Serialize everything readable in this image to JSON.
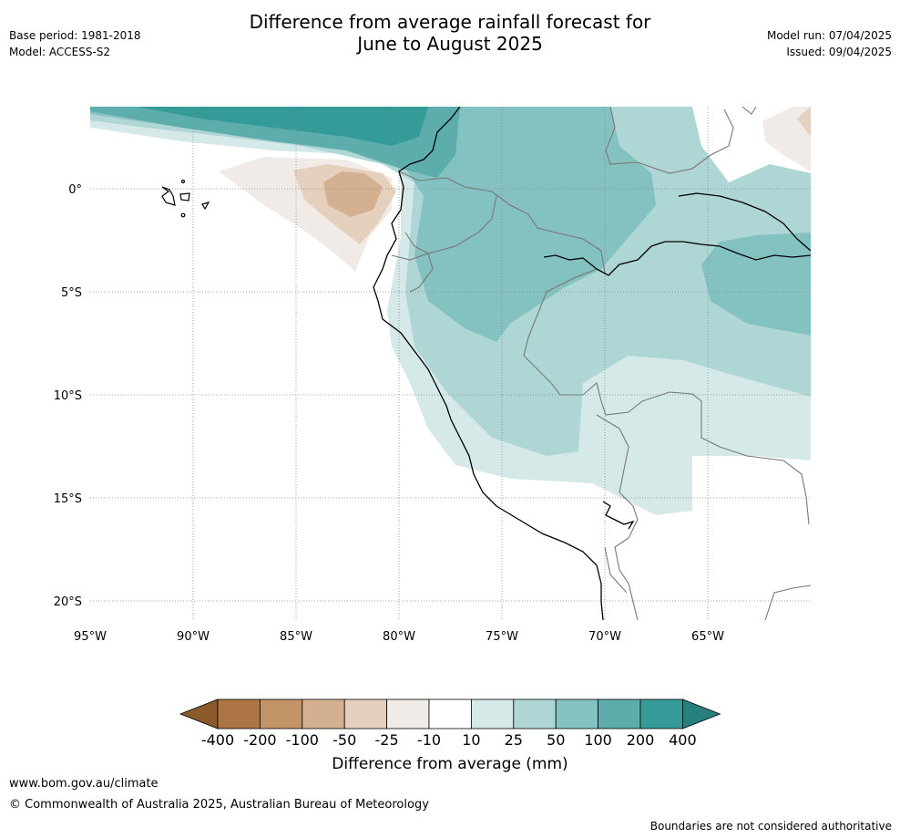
{
  "title_line1": "Difference from average rainfall forecast for",
  "title_line2": "June to August 2025",
  "base_period": "Base period: 1981-2018",
  "model": "Model: ACCESS-S2",
  "model_run": "Model run: 07/04/2025",
  "issued": "Issued: 09/04/2025",
  "lat_labels": [
    "0°",
    "5°S",
    "10°S",
    "15°S",
    "20°S"
  ],
  "lon_labels": [
    "95°W",
    "90°W",
    "85°W",
    "80°W",
    "75°W",
    "70°W",
    "65°W"
  ],
  "colorbar": {
    "ticks": [
      "-400",
      "-200",
      "-100",
      "-50",
      "-25",
      "-10",
      "10",
      "25",
      "50",
      "100",
      "200",
      "400"
    ],
    "colors": [
      "#8b5a2b",
      "#ad7543",
      "#c39468",
      "#d3b08f",
      "#e4d0bd",
      "#f0ebe7",
      "#ffffff",
      "#d5e9e8",
      "#aed6d5",
      "#84c2c1",
      "#5cadab",
      "#359b99",
      "#27807e"
    ],
    "title": "Difference from average (mm)"
  },
  "footer_url": "www.bom.gov.au/climate",
  "footer_copyright": "© Commonwealth of Australia 2025, Australian Bureau of Meteorology",
  "footer_note": "Boundaries are not considered authoritative"
}
